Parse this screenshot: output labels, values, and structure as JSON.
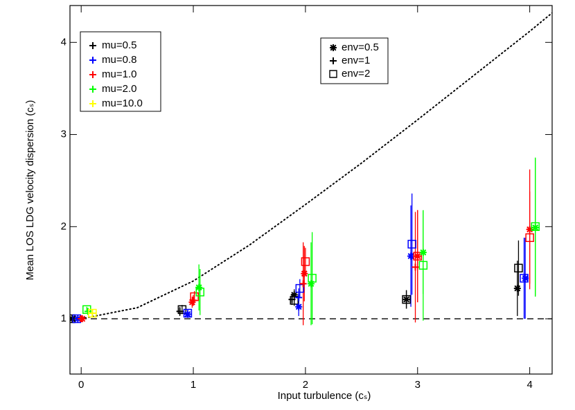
{
  "chart_data": {
    "type": "scatter",
    "x_label": "Input turbulence (cₛ)",
    "y_label": "Mean LOS LDG velocity dispersion (cₛ)",
    "xlim": [
      -0.1,
      4.2
    ],
    "ylim": [
      0.4,
      4.4
    ],
    "xticks": [
      0,
      1,
      2,
      3,
      4
    ],
    "yticks": [
      1,
      2,
      3,
      4
    ],
    "hline": {
      "value": 1,
      "dash": "dashed"
    },
    "model_line": {
      "dash": "dotted",
      "x": [
        0,
        0.5,
        1,
        1.5,
        2,
        2.5,
        3,
        3.5,
        4,
        4.2
      ],
      "values": [
        1,
        1.12,
        1.41,
        1.8,
        2.24,
        2.69,
        3.16,
        3.64,
        4.12,
        4.32
      ]
    },
    "series": [
      {
        "name": "mu=0.5",
        "color": "#000000",
        "x": [
          -0.09,
          -0.08,
          0.9,
          0.88,
          1.9,
          1.9,
          1.88,
          2.9,
          2.9,
          3.9,
          3.89
        ],
        "values": [
          1.0,
          1.0,
          1.1,
          1.08,
          1.2,
          1.26,
          1.21,
          1.21,
          1.21,
          1.55,
          1.33
        ],
        "errors": [
          0.02,
          0.02,
          0.05,
          0.05,
          0.06,
          0.06,
          0.06,
          0.1,
          0.1,
          0.3,
          0.3
        ],
        "markers": [
          "square",
          "asterisk",
          "square",
          "plus",
          "square",
          "asterisk",
          "plus",
          "square",
          "asterisk",
          "square",
          "asterisk"
        ]
      },
      {
        "name": "mu=0.8",
        "color": "#0000ff",
        "x": [
          -0.04,
          -0.03,
          0.95,
          0.95,
          1.95,
          1.94,
          1.94,
          2.95,
          2.94,
          3.95,
          3.96
        ],
        "values": [
          1.0,
          1.0,
          1.06,
          1.05,
          1.33,
          1.23,
          1.13,
          1.81,
          1.68,
          1.44,
          1.44
        ],
        "errors": [
          0.02,
          0.02,
          0.04,
          0.04,
          0.1,
          0.1,
          0.1,
          0.55,
          0.55,
          0.44,
          0.44
        ],
        "markers": [
          "square",
          "asterisk",
          "square",
          "asterisk",
          "square",
          "plus",
          "asterisk",
          "square",
          "asterisk",
          "square",
          "asterisk"
        ]
      },
      {
        "name": "mu=1.0",
        "color": "#ff0000",
        "x": [
          0.01,
          0.0,
          1.01,
          0.99,
          1.0,
          2.0,
          1.99,
          1.98,
          3.0,
          3.0,
          2.98,
          4.0,
          4.0
        ],
        "values": [
          1.0,
          1.0,
          1.24,
          1.18,
          1.2,
          1.62,
          1.49,
          1.38,
          1.68,
          1.68,
          1.56,
          1.88,
          1.97
        ],
        "errors": [
          0.02,
          0.02,
          0.06,
          0.06,
          0.06,
          0.15,
          0.3,
          0.45,
          0.5,
          0.5,
          0.6,
          0.5,
          0.65
        ],
        "markers": [
          "asterisk",
          "plus",
          "square",
          "asterisk",
          "plus",
          "square",
          "asterisk",
          "plus",
          "square",
          "asterisk",
          "plus",
          "square",
          "asterisk"
        ]
      },
      {
        "name": "mu=2.0",
        "color": "#00ff00",
        "x": [
          0.05,
          0.06,
          1.05,
          1.06,
          2.06,
          2.05,
          3.05,
          3.05,
          4.05,
          4.05
        ],
        "values": [
          1.1,
          1.08,
          1.34,
          1.29,
          1.44,
          1.38,
          1.72,
          1.58,
          2.0,
          1.99
        ],
        "errors": [
          0.03,
          0.03,
          0.25,
          0.25,
          0.5,
          0.45,
          0.45,
          0.6,
          0.75,
          0.75
        ],
        "markers": [
          "square",
          "plus",
          "asterisk",
          "square",
          "square",
          "asterisk",
          "asterisk",
          "square",
          "square",
          "asterisk"
        ]
      },
      {
        "name": "mu=10.0",
        "color": "#ffff00",
        "x": [
          0.1,
          0.1
        ],
        "values": [
          1.06,
          1.06
        ],
        "errors": [
          0.02,
          0.02
        ],
        "markers": [
          "square",
          "plus"
        ]
      }
    ],
    "marker_legend": [
      {
        "name": "env=0.5",
        "marker": "asterisk"
      },
      {
        "name": "env=1",
        "marker": "plus"
      },
      {
        "name": "env=2",
        "marker": "square"
      }
    ]
  }
}
